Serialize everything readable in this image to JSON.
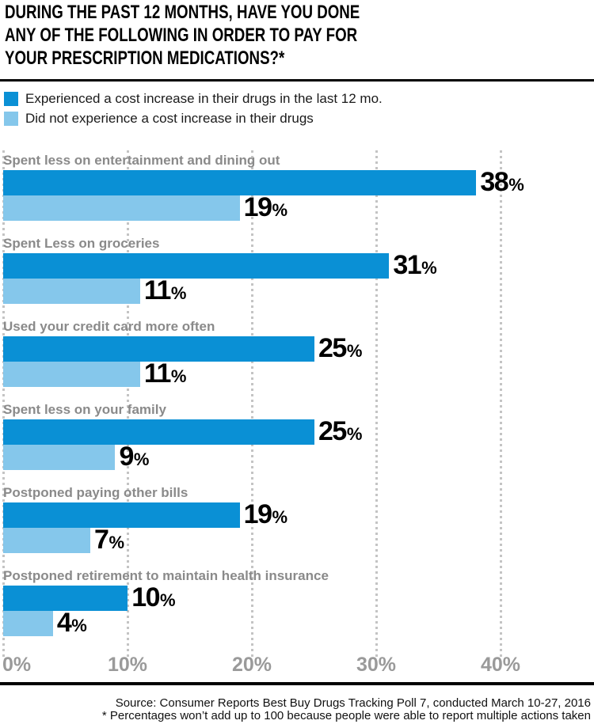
{
  "header": {
    "title_lines": [
      "DURING THE PAST 12 MONTHS, HAVE YOU DONE",
      "ANY OF THE FOLLOWING IN ORDER TO PAY FOR",
      "YOUR PRESCRIPTION MEDICATIONS?*"
    ]
  },
  "legend": {
    "items": [
      {
        "label": "Experienced a cost increase in their drugs in the last 12 mo.",
        "color": "#0a90d5"
      },
      {
        "label": "Did not experience a cost increase in their drugs",
        "color": "#85c7eb"
      }
    ]
  },
  "chart_data": {
    "type": "bar",
    "orientation": "horizontal",
    "title": "During the past 12 months, have you done any of the following in order to pay for your prescription medications?*",
    "categories": [
      "Spent less on entertainment and dining out",
      "Spent Less on groceries",
      "Used your credit card more often",
      "Spent less on your family",
      "Postponed paying other bills",
      "Postponed retirement to maintain health insurance"
    ],
    "series": [
      {
        "name": "Experienced a cost increase in their drugs in the last 12 mo.",
        "color": "#0a90d5",
        "values": [
          38,
          31,
          25,
          25,
          19,
          10
        ]
      },
      {
        "name": "Did not experience a cost increase in their drugs",
        "color": "#85c7eb",
        "values": [
          19,
          11,
          11,
          9,
          7,
          4
        ]
      }
    ],
    "value_suffix": "%",
    "xlim": [
      0,
      47.5
    ],
    "x_ticks": [
      "0%",
      "10%",
      "20%",
      "30%",
      "40%"
    ],
    "x_tick_values": [
      0,
      10,
      20,
      30,
      40
    ],
    "grid": "dotted-vertical",
    "grid_color": "#c4c4c4",
    "legend_position": "top-left",
    "value_label_color": "#000000",
    "category_label_color": "#8a8a8a",
    "axis_tick_color": "#9a9a9a"
  },
  "footer": {
    "source_line": "Source: Consumer Reports Best Buy Drugs Tracking Poll 7, conducted March 10-27, 2016",
    "footnote_line": "* Percentages won’t add up to 100 because people were able to report multiple actions taken"
  }
}
